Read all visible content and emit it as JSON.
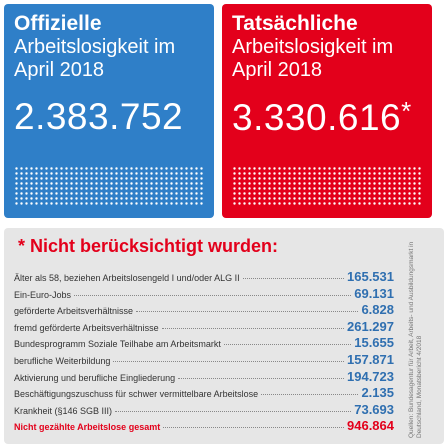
{
  "official": {
    "title": "Offizielle",
    "subtitle_line1": "Arbeitslosigkeit im",
    "subtitle_line2": "April 2018",
    "number": "2.383.752"
  },
  "actual": {
    "title": "Tatsächliche",
    "subtitle_line1": "Arbeitslosigkeit im",
    "subtitle_line2": "April 2018",
    "number": "3.330.616",
    "footnote_mark": "*"
  },
  "not_counted": {
    "title": "* Nicht berücksichtigt wurden:",
    "rows": [
      [
        "Älter als 58, beziehen Arbeitslosengeld I und/oder ALG II",
        "165.531"
      ],
      [
        "Ein-Euro-Jobs",
        "69.131"
      ],
      [
        "geförderte Arbeitsverhältnisse",
        "6.828"
      ],
      [
        "fremd geförderte Arbeitsverhältnisse",
        "261.297"
      ],
      [
        "Bundesprogramm Soziale Teilhabe am Arbeitsmarkt",
        "15.655"
      ],
      [
        "berufliche Weiterbildung",
        "157.871"
      ],
      [
        "Aktivierung und berufliche Eingliederung",
        "194.723"
      ],
      [
        "Beschäftigungszuschuss für schwer vermittelbare Arbeitslose",
        "2.135"
      ],
      [
        "Krankheit (§146 SGB III)",
        "73.693"
      ]
    ],
    "total": [
      "Nicht gezählte Arbeitslose gesamt",
      "946.864"
    ]
  },
  "source": "Quellen: Bundesagentur für Arbeit, Arbeits- und Ausbildungsmarkt in Deutschland, Monatsbericht 4/2018"
}
